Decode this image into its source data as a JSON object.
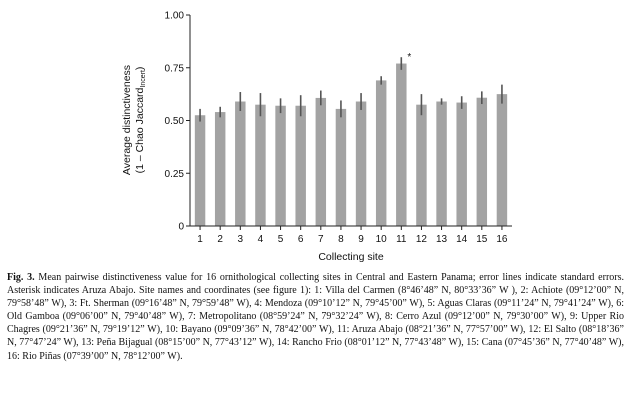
{
  "figure": {
    "label": "Fig. 3.",
    "caption": "Mean pairwise distinctiveness value for 16 ornithological collecting sites in Central and Eastern Panama; error lines indicate standard errors. Asterisk indicates Aruza Abajo. Site names and coordinates (see figure 1): 1: Villa del Carmen (8°46’48” N, 80°33’36” W ), 2: Achiote (09°12’00” N, 79°58’48” W), 3: Ft. Sherman (09°16’48” N, 79°59’48” W), 4: Mendoza (09°10’12” N, 79°45’00” W), 5: Aguas Claras (09°11’24” N, 79°41’24” W), 6: Old Gamboa (09°06’00” N, 79°40’48” W), 7: Metropolitano (08°59’24” N, 79°32’24” W), 8: Cerro Azul (09°12’00” N, 79°30’00” W), 9: Upper Rio Chagres (09°21’36” N, 79°19’12” W), 10: Bayano (09°09’36” N, 78°42’00” W), 11: Aruza Abajo (08°21’36” N, 77°57’00” W), 12: El Salto (08°18’36” N, 77°47’24” W), 13: Peña Bijagual (08°15’00” N, 77°43’12” W), 14: Rancho Frio (08°01’12” N, 77°43’48” W), 15: Cana (07°45’36” N, 77°40’48” W), 16: Rio Piñas (07°39’00” N, 78°12’00” W)."
  },
  "chart_data": {
    "type": "bar",
    "categories": [
      "1",
      "2",
      "3",
      "4",
      "5",
      "6",
      "7",
      "8",
      "9",
      "10",
      "11",
      "12",
      "13",
      "14",
      "15",
      "16"
    ],
    "values": [
      0.525,
      0.54,
      0.59,
      0.575,
      0.57,
      0.57,
      0.607,
      0.555,
      0.59,
      0.69,
      0.77,
      0.575,
      0.59,
      0.585,
      0.608,
      0.625
    ],
    "errors": [
      0.03,
      0.025,
      0.045,
      0.055,
      0.035,
      0.05,
      0.035,
      0.04,
      0.04,
      0.02,
      0.03,
      0.05,
      0.015,
      0.03,
      0.03,
      0.045
    ],
    "xlabel": "Collecting site",
    "ylabel_line1": "Average distinctiveness",
    "ylabel_line2": "(1 – Chao Jaccard",
    "ylabel_sub": "Incert",
    "ylabel_end": ")",
    "ylim": [
      0,
      1
    ],
    "yticks": [
      0,
      0.25,
      0.5,
      0.75,
      1
    ],
    "ytick_labels": [
      "0",
      "0.25",
      "0.50",
      "0.75",
      "1.00"
    ],
    "annotation": {
      "category": "11",
      "text": "*"
    },
    "bar_color": "#a3a3a3",
    "axis_color": "#222222"
  }
}
